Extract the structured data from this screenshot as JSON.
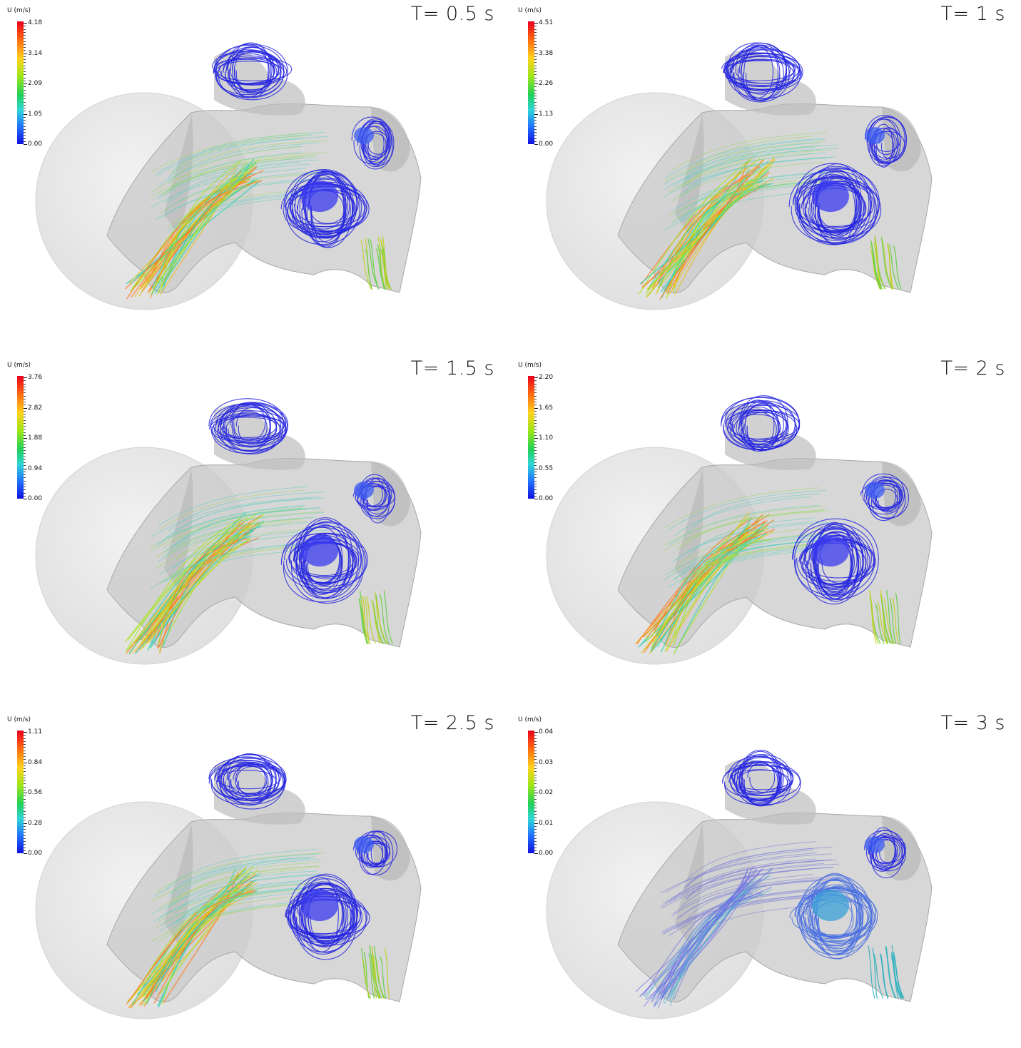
{
  "panels": [
    {
      "time_label": "T= 0.5 s",
      "colorbar": {
        "title": "U (m/s)",
        "ticks": [
          "4.18",
          "3.14",
          "2.09",
          "1.05",
          "0.00"
        ],
        "max": 4.18
      },
      "flow_state": "inhale"
    },
    {
      "time_label": "T= 1 s",
      "colorbar": {
        "title": "U (m/s)",
        "ticks": [
          "4.51",
          "3.38",
          "2.26",
          "1.13",
          "0.00"
        ],
        "max": 4.51
      },
      "flow_state": "inhale"
    },
    {
      "time_label": "T= 1.5 s",
      "colorbar": {
        "title": "U (m/s)",
        "ticks": [
          "3.76",
          "2.82",
          "1.88",
          "0.94",
          "0.00"
        ],
        "max": 3.76
      },
      "flow_state": "inhale"
    },
    {
      "time_label": "T= 2 s",
      "colorbar": {
        "title": "U (m/s)",
        "ticks": [
          "2.20",
          "1.65",
          "1.10",
          "0.55",
          "0.00"
        ],
        "max": 2.2
      },
      "flow_state": "inhale"
    },
    {
      "time_label": "T= 2.5 s",
      "colorbar": {
        "title": "U (m/s)",
        "ticks": [
          "1.11",
          "0.84",
          "0.56",
          "0.28",
          "0.00"
        ],
        "max": 1.11
      },
      "flow_state": "inhale"
    },
    {
      "time_label": "T= 3 s",
      "colorbar": {
        "title": "U (m/s)",
        "ticks": [
          "0.04",
          "0.03",
          "0.02",
          "0.01",
          "0.00"
        ],
        "max": 0.04
      },
      "flow_state": "stagnant"
    }
  ],
  "colors": {
    "head_surface": "#c8c8c8",
    "domain_sphere": "#e6e6e6",
    "streamline_low": "#2525e0",
    "streamline_mid": "#20d0a0",
    "streamline_high": "#ff4020"
  }
}
